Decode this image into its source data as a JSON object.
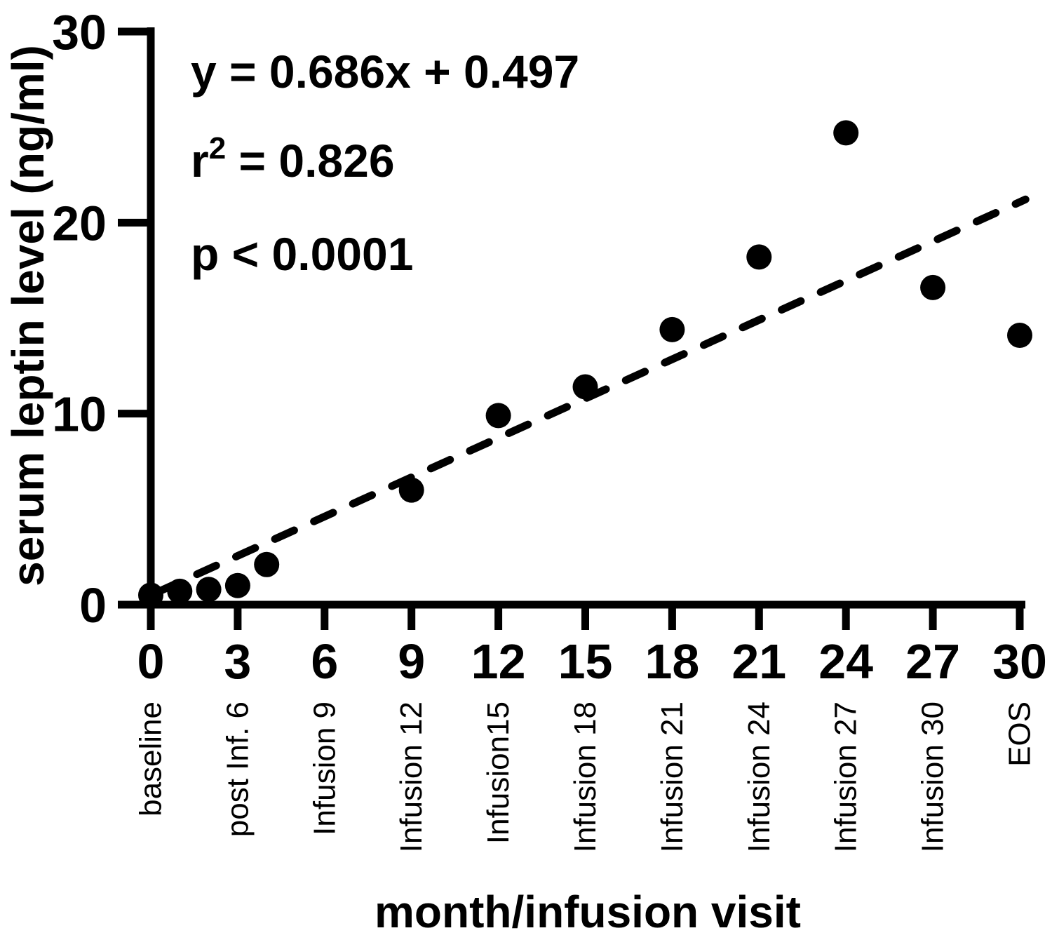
{
  "chart_data": {
    "type": "scatter",
    "title": "",
    "xlabel": "month/infusion visit",
    "ylabel": "serum leptin level (ng/ml)",
    "xlim": [
      0,
      30
    ],
    "ylim": [
      0,
      30
    ],
    "grid": false,
    "legend": null,
    "marker_color": "#000000",
    "background": "#ffffff",
    "x_ticks": [
      0,
      3,
      6,
      9,
      12,
      15,
      18,
      21,
      24,
      27,
      30
    ],
    "x_tick_visit_labels": [
      "baseline",
      "post Inf. 6",
      "Infusion 9",
      "Infusion 12",
      "Infusion15",
      "Infusion 18",
      "Infusion 21",
      "Infusion 24",
      "Infusion 27",
      "Infusion 30",
      "EOS"
    ],
    "y_ticks": [
      0,
      10,
      20,
      30
    ],
    "points": [
      [
        0,
        0.5
      ],
      [
        1,
        0.7
      ],
      [
        2,
        0.8
      ],
      [
        3,
        1.0
      ],
      [
        4,
        2.1
      ],
      [
        9,
        6.0
      ],
      [
        12,
        9.9
      ],
      [
        15,
        11.4
      ],
      [
        18,
        14.4
      ],
      [
        21,
        18.2
      ],
      [
        24,
        24.7
      ],
      [
        27,
        16.6
      ],
      [
        30,
        14.1
      ]
    ],
    "trendline": {
      "style": "dashed",
      "slope": 0.686,
      "intercept": 0.497,
      "x_start": 0.25,
      "x_end": 30.2
    },
    "annotations": [
      {
        "segments": [
          {
            "t": "y = 0.686x + 0.497"
          }
        ]
      },
      {
        "segments": [
          {
            "t": "r"
          },
          {
            "t": "2",
            "sup": true
          },
          {
            "t": " = 0.826"
          }
        ]
      },
      {
        "segments": [
          {
            "t": "p < 0.0001"
          }
        ]
      }
    ]
  }
}
